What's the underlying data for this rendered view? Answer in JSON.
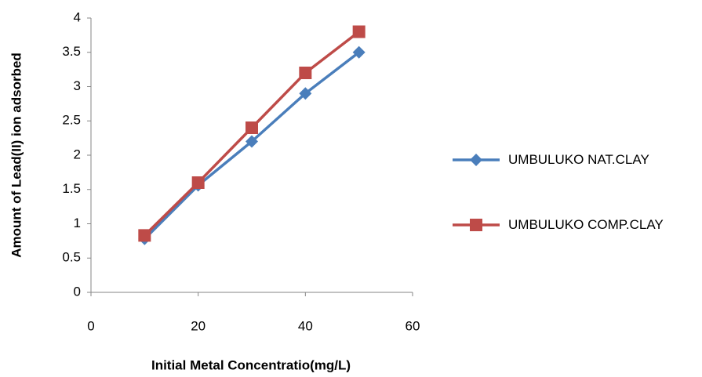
{
  "chart_data": {
    "type": "line",
    "x_label": "Initial Metal Concentratio(mg/L)",
    "y_label": "Amount of Lead(II) ion adsorbed",
    "x": [
      10,
      20,
      30,
      40,
      50
    ],
    "series": [
      {
        "name": "UMBULUKO NAT.CLAY",
        "color": "#4a7ebb",
        "marker": "diamond",
        "values": [
          0.78,
          1.56,
          2.2,
          2.9,
          3.5
        ]
      },
      {
        "name": "UMBULUKO COMP.CLAY",
        "color": "#be4b48",
        "marker": "square",
        "values": [
          0.83,
          1.6,
          2.4,
          3.2,
          3.8
        ]
      }
    ],
    "xlim": [
      0,
      60
    ],
    "xticks": [
      0,
      20,
      40,
      60
    ],
    "ylim": [
      0,
      4
    ],
    "yticks": [
      0,
      0.5,
      1,
      1.5,
      2,
      2.5,
      3,
      3.5,
      4
    ],
    "grid": false,
    "legend": "right"
  }
}
